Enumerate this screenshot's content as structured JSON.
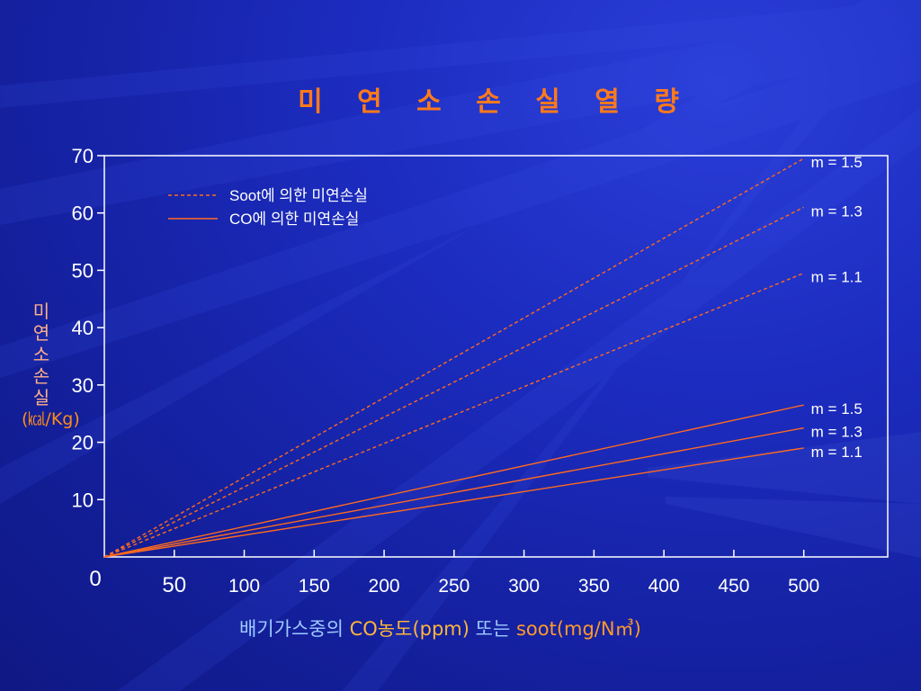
{
  "slide": {
    "title": "미 연 소  손 실 열 량"
  },
  "axis_labels": {
    "y_main": "미연소손실",
    "y_unit": "(㎉/Kg)",
    "x_part1": "배기가스중의 ",
    "x_part2": "CO농도(ppm)",
    "x_part3": " 또는 ",
    "x_part4": "soot(mg/N㎥)"
  },
  "colors": {
    "line": "#ff6a1f",
    "axis_frame": "#ffffff",
    "tick_label": "#ffffff",
    "title": "#ff7a1a",
    "curve_label": "#ffffff"
  },
  "chart_data": {
    "type": "line",
    "title": "미 연 소  손 실 열 량",
    "xlabel": "배기가스중의 CO농도(ppm) 또는 soot(mg/N㎥)",
    "ylabel": "미연소손실 (㎉/Kg)",
    "xlim": [
      0,
      560
    ],
    "ylim": [
      0,
      70
    ],
    "x_ticks": [
      0,
      50,
      100,
      150,
      200,
      250,
      300,
      350,
      400,
      450,
      500
    ],
    "x_tick_labels": [
      "0",
      "50",
      "100",
      "150",
      "200",
      "250",
      "300",
      "350",
      "400",
      "450",
      "500"
    ],
    "y_ticks": [
      10,
      20,
      30,
      40,
      50,
      60,
      70
    ],
    "y_tick_labels": [
      "10",
      "20",
      "30",
      "40",
      "50",
      "60",
      "70"
    ],
    "grid": false,
    "legend": {
      "position": "top-left",
      "entries": [
        {
          "label": "Soot에 의한 미연손실",
          "style": "dashed"
        },
        {
          "label": "CO에 의한 미연손실",
          "style": "solid"
        }
      ]
    },
    "series": [
      {
        "group": "Soot에 의한 미연손실",
        "style": "dashed",
        "label": "m = 1.5",
        "x": [
          0,
          500
        ],
        "y": [
          0,
          69.5
        ]
      },
      {
        "group": "Soot에 의한 미연손실",
        "style": "dashed",
        "label": "m = 1.3",
        "x": [
          0,
          500
        ],
        "y": [
          0,
          61
        ]
      },
      {
        "group": "Soot에 의한 미연손실",
        "style": "dashed",
        "label": "m = 1.1",
        "x": [
          0,
          500
        ],
        "y": [
          0,
          49.5
        ]
      },
      {
        "group": "CO에 의한 미연손실",
        "style": "solid",
        "label": "m = 1.5",
        "x": [
          0,
          500
        ],
        "y": [
          0,
          26.5
        ]
      },
      {
        "group": "CO에 의한 미연손실",
        "style": "solid",
        "label": "m = 1.3",
        "x": [
          0,
          500
        ],
        "y": [
          0,
          22.5
        ]
      },
      {
        "group": "CO에 의한 미연손실",
        "style": "solid",
        "label": "m = 1.1",
        "x": [
          0,
          500
        ],
        "y": [
          0,
          19
        ]
      }
    ]
  }
}
